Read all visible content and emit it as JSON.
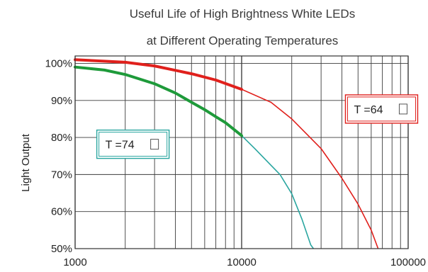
{
  "chart_data": {
    "type": "line",
    "title": "Useful Life of High Brightness White LEDs",
    "subtitle": "at Different Operating Temperatures",
    "xlabel": "",
    "ylabel": "Light Output",
    "x_scale": "log",
    "xlim": [
      1000,
      100000
    ],
    "ylim": [
      50,
      102
    ],
    "x_ticks": [
      1000,
      10000,
      100000
    ],
    "x_tick_labels": [
      "1000",
      "10000",
      "100000"
    ],
    "y_ticks": [
      50,
      60,
      70,
      80,
      90,
      100
    ],
    "y_tick_labels": [
      "50%",
      "60%",
      "70%",
      "80%",
      "90%",
      "100%"
    ],
    "grid": true,
    "series": [
      {
        "color": "#e0201c",
        "emphasized_until": 10000,
        "points": [
          [
            1000,
            101
          ],
          [
            2000,
            100.3
          ],
          [
            3000,
            99.3
          ],
          [
            5000,
            97.2
          ],
          [
            7000,
            95.5
          ],
          [
            10000,
            93
          ],
          [
            15000,
            89.5
          ],
          [
            20000,
            85
          ],
          [
            30000,
            77
          ],
          [
            40000,
            69
          ],
          [
            50000,
            62
          ],
          [
            60000,
            55
          ],
          [
            66000,
            50
          ]
        ]
      },
      {
        "color": "#1e9a3a",
        "line_color_after": "#2aa6a0",
        "emphasized_until": 10000,
        "points": [
          [
            1000,
            99
          ],
          [
            1500,
            98.2
          ],
          [
            2000,
            97
          ],
          [
            3000,
            94.5
          ],
          [
            4000,
            92
          ],
          [
            5000,
            89.5
          ],
          [
            6000,
            87.5
          ],
          [
            7000,
            85.6
          ],
          [
            8000,
            84
          ],
          [
            10000,
            80.5
          ],
          [
            12000,
            77
          ],
          [
            15000,
            72.5
          ],
          [
            17000,
            70
          ],
          [
            20000,
            64.8
          ],
          [
            23000,
            58
          ],
          [
            26000,
            51
          ],
          [
            27000,
            50
          ]
        ]
      }
    ],
    "annotations": [
      {
        "text": "T  =64",
        "series_index": 0,
        "box_color": "#e0201c",
        "anchor": [
          42000,
          91.5
        ]
      },
      {
        "text": "T  =74",
        "series_index": 1,
        "box_color": "#2aa6a0",
        "anchor": [
          1350,
          82
        ]
      }
    ]
  }
}
